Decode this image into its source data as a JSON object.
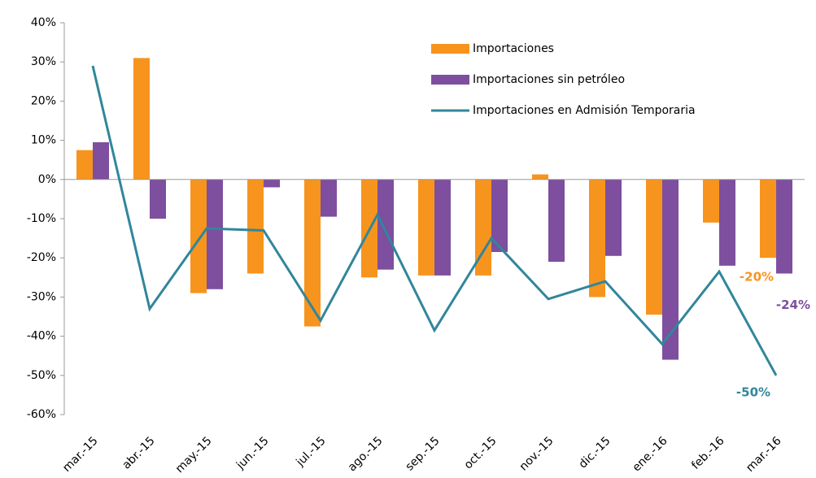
{
  "chart_data": {
    "type": "bar",
    "categories": [
      "mar.-15",
      "abr.-15",
      "may.-15",
      "jun.-15",
      "jul.-15",
      "ago.-15",
      "sep.-15",
      "oct.-15",
      "nov.-15",
      "dic.-15",
      "ene.-16",
      "feb.-16",
      "mar.-16"
    ],
    "series": [
      {
        "name": "Importaciones",
        "color": "#f7941d",
        "type": "bar",
        "values": [
          7.5,
          31,
          -29,
          -24,
          -37.5,
          -25,
          -24.5,
          -24.5,
          1.3,
          -30,
          -34.5,
          -11,
          -20
        ],
        "value_labels": [
          null,
          null,
          null,
          null,
          null,
          null,
          null,
          null,
          null,
          null,
          null,
          null,
          "-20%"
        ]
      },
      {
        "name": "Importaciones sin petróleo",
        "color": "#7d4f9e",
        "type": "bar",
        "values": [
          9.5,
          -10,
          -28,
          -2,
          -9.5,
          -23,
          -24.5,
          -18.5,
          -21,
          -19.5,
          -46,
          -22,
          -24
        ],
        "value_labels": [
          null,
          null,
          null,
          null,
          null,
          null,
          null,
          null,
          null,
          null,
          null,
          null,
          "-24%"
        ]
      },
      {
        "name": "Importaciones en Admisión Temporaria",
        "color": "#31869b",
        "type": "line",
        "values": [
          29,
          -33,
          -12.5,
          -13,
          -36,
          -9,
          -38.5,
          -15,
          -30.5,
          -26,
          -42,
          -23.5,
          -50
        ],
        "value_labels": [
          null,
          null,
          null,
          null,
          null,
          null,
          null,
          null,
          null,
          null,
          null,
          null,
          "-50%"
        ]
      }
    ],
    "ylim": [
      -60,
      40
    ],
    "yticks": [
      {
        "value": -60,
        "label": "-60%"
      },
      {
        "value": -50,
        "label": "-50%"
      },
      {
        "value": -40,
        "label": "-40%"
      },
      {
        "value": -30,
        "label": "-30%"
      },
      {
        "value": -20,
        "label": "-20%"
      },
      {
        "value": -10,
        "label": "-10%"
      },
      {
        "value": 0,
        "label": "0%"
      },
      {
        "value": 10,
        "label": "10%"
      },
      {
        "value": 20,
        "label": "20%"
      },
      {
        "value": 30,
        "label": "30%"
      },
      {
        "value": 40,
        "label": "40%"
      }
    ],
    "grid": false,
    "legend": "upper right"
  }
}
